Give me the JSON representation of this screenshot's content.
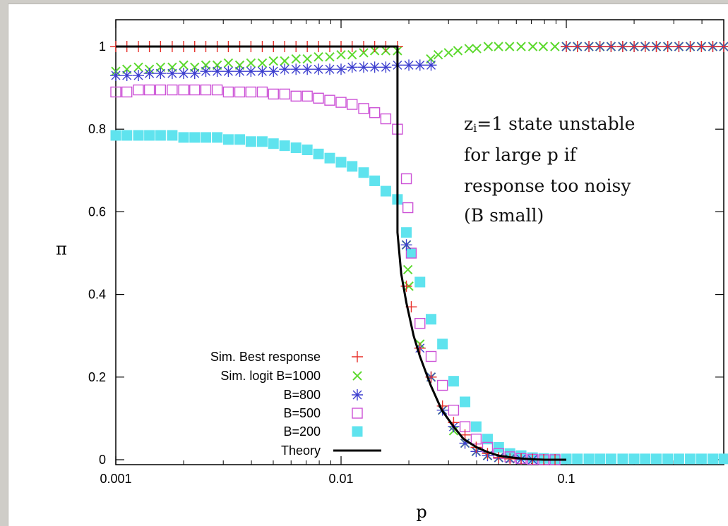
{
  "chart_data": {
    "type": "scatter",
    "title": "",
    "xlabel": "p",
    "ylabel": "π",
    "xscale": "log",
    "xlim": [
      0.001,
      0.5
    ],
    "ylim": [
      0,
      1.05
    ],
    "grid": false,
    "legend_position": "bottom-left",
    "x_ticks": [
      {
        "value": 0.001,
        "label": "0.001"
      },
      {
        "value": 0.01,
        "label": "0.01"
      },
      {
        "value": 0.1,
        "label": "0.1"
      }
    ],
    "y_ticks": [
      {
        "value": 0,
        "label": "0"
      },
      {
        "value": 0.2,
        "label": "0.2"
      },
      {
        "value": 0.4,
        "label": "0.4"
      },
      {
        "value": 0.6,
        "label": "0.6"
      },
      {
        "value": 0.8,
        "label": "0.8"
      },
      {
        "value": 1,
        "label": "1"
      }
    ],
    "annotation": [
      "z",
      "i",
      "=1 state unstable",
      "for large p if",
      "response too noisy",
      "(B small)"
    ],
    "series": [
      {
        "name": "Sim. Best response",
        "marker": "plus",
        "color": "#e8302a",
        "points": [
          [
            0.001,
            1
          ],
          [
            0.00112,
            1
          ],
          [
            0.00126,
            1
          ],
          [
            0.00141,
            1
          ],
          [
            0.00158,
            1
          ],
          [
            0.00178,
            1
          ],
          [
            0.002,
            1
          ],
          [
            0.00224,
            1
          ],
          [
            0.00251,
            1
          ],
          [
            0.00282,
            1
          ],
          [
            0.00316,
            1
          ],
          [
            0.00355,
            1
          ],
          [
            0.00398,
            1
          ],
          [
            0.00447,
            1
          ],
          [
            0.00501,
            1
          ],
          [
            0.00562,
            1
          ],
          [
            0.00631,
            1
          ],
          [
            0.00708,
            1
          ],
          [
            0.00794,
            1
          ],
          [
            0.00891,
            1
          ],
          [
            0.01,
            1
          ],
          [
            0.0112,
            1
          ],
          [
            0.0126,
            1
          ],
          [
            0.0141,
            1
          ],
          [
            0.0158,
            1
          ],
          [
            0.0178,
            1
          ],
          [
            0.0195,
            0.42
          ],
          [
            0.0205,
            0.37
          ],
          [
            0.0224,
            0.27
          ],
          [
            0.0251,
            0.2
          ],
          [
            0.0282,
            0.13
          ],
          [
            0.0316,
            0.09
          ],
          [
            0.0355,
            0.06
          ],
          [
            0.0398,
            0.03
          ],
          [
            0.0447,
            0.015
          ],
          [
            0.0501,
            0.005
          ],
          [
            0.0562,
            0.002
          ],
          [
            0.063,
            0.002
          ],
          [
            0.0708,
            0.001
          ],
          [
            0.0794,
            0
          ],
          [
            0.0891,
            0
          ],
          [
            0.1,
            1
          ],
          [
            0.112,
            1
          ],
          [
            0.126,
            1
          ],
          [
            0.141,
            1
          ],
          [
            0.158,
            1
          ],
          [
            0.178,
            1
          ],
          [
            0.2,
            1
          ],
          [
            0.224,
            1
          ],
          [
            0.251,
            1
          ],
          [
            0.282,
            1
          ],
          [
            0.316,
            1
          ],
          [
            0.355,
            1
          ],
          [
            0.398,
            1
          ],
          [
            0.447,
            1
          ],
          [
            0.5,
            1
          ]
        ]
      },
      {
        "name": "Sim. logit B=1000",
        "marker": "x",
        "color": "#5dd92f",
        "points": [
          [
            0.001,
            0.94
          ],
          [
            0.00112,
            0.945
          ],
          [
            0.00126,
            0.95
          ],
          [
            0.00141,
            0.945
          ],
          [
            0.00158,
            0.95
          ],
          [
            0.00178,
            0.95
          ],
          [
            0.002,
            0.955
          ],
          [
            0.00224,
            0.95
          ],
          [
            0.00251,
            0.955
          ],
          [
            0.00282,
            0.955
          ],
          [
            0.00316,
            0.96
          ],
          [
            0.00355,
            0.955
          ],
          [
            0.00398,
            0.96
          ],
          [
            0.00447,
            0.96
          ],
          [
            0.00501,
            0.965
          ],
          [
            0.00562,
            0.965
          ],
          [
            0.00631,
            0.97
          ],
          [
            0.00708,
            0.97
          ],
          [
            0.00794,
            0.975
          ],
          [
            0.00891,
            0.975
          ],
          [
            0.01,
            0.98
          ],
          [
            0.0112,
            0.98
          ],
          [
            0.0126,
            0.985
          ],
          [
            0.0141,
            0.99
          ],
          [
            0.0158,
            0.99
          ],
          [
            0.0178,
            0.99
          ],
          [
            0.0195,
            0.52
          ],
          [
            0.0198,
            0.46
          ],
          [
            0.02,
            0.42
          ],
          [
            0.0224,
            0.28
          ],
          [
            0.0251,
            0.2
          ],
          [
            0.0282,
            0.12
          ],
          [
            0.0316,
            0.07
          ],
          [
            0.0355,
            0.04
          ],
          [
            0.0398,
            0.02
          ],
          [
            0.0447,
            0.01
          ],
          [
            0.0501,
            0.005
          ],
          [
            0.0562,
            0.002
          ],
          [
            0.025,
            0.97
          ],
          [
            0.027,
            0.98
          ],
          [
            0.03,
            0.985
          ],
          [
            0.033,
            0.99
          ],
          [
            0.037,
            0.995
          ],
          [
            0.04,
            0.995
          ],
          [
            0.045,
            1
          ],
          [
            0.05,
            1
          ],
          [
            0.056,
            1
          ],
          [
            0.063,
            1
          ],
          [
            0.071,
            1
          ],
          [
            0.079,
            1
          ],
          [
            0.089,
            1
          ],
          [
            0.1,
            1
          ],
          [
            0.112,
            1
          ],
          [
            0.126,
            1
          ],
          [
            0.141,
            1
          ],
          [
            0.158,
            1
          ],
          [
            0.178,
            1
          ],
          [
            0.2,
            1
          ],
          [
            0.224,
            1
          ],
          [
            0.251,
            1
          ],
          [
            0.282,
            1
          ],
          [
            0.316,
            1
          ],
          [
            0.355,
            1
          ],
          [
            0.398,
            1
          ],
          [
            0.447,
            1
          ],
          [
            0.5,
            1
          ]
        ]
      },
      {
        "name": "B=800",
        "marker": "star",
        "color": "#3d3fcf",
        "points": [
          [
            0.001,
            0.93
          ],
          [
            0.00112,
            0.93
          ],
          [
            0.00126,
            0.93
          ],
          [
            0.00141,
            0.935
          ],
          [
            0.00158,
            0.935
          ],
          [
            0.00178,
            0.935
          ],
          [
            0.002,
            0.935
          ],
          [
            0.00224,
            0.935
          ],
          [
            0.00251,
            0.94
          ],
          [
            0.00282,
            0.94
          ],
          [
            0.00316,
            0.94
          ],
          [
            0.00355,
            0.94
          ],
          [
            0.00398,
            0.94
          ],
          [
            0.00447,
            0.94
          ],
          [
            0.00501,
            0.94
          ],
          [
            0.00562,
            0.945
          ],
          [
            0.00631,
            0.945
          ],
          [
            0.00708,
            0.945
          ],
          [
            0.00794,
            0.945
          ],
          [
            0.00891,
            0.945
          ],
          [
            0.01,
            0.945
          ],
          [
            0.0112,
            0.95
          ],
          [
            0.0126,
            0.95
          ],
          [
            0.0141,
            0.95
          ],
          [
            0.0158,
            0.95
          ],
          [
            0.0178,
            0.955
          ],
          [
            0.02,
            0.955
          ],
          [
            0.0224,
            0.955
          ],
          [
            0.0251,
            0.955
          ],
          [
            0.0195,
            0.52
          ],
          [
            0.0224,
            0.27
          ],
          [
            0.0251,
            0.2
          ],
          [
            0.0282,
            0.12
          ],
          [
            0.0316,
            0.08
          ],
          [
            0.0355,
            0.04
          ],
          [
            0.0398,
            0.02
          ],
          [
            0.0447,
            0.01
          ],
          [
            0.0501,
            0.005
          ],
          [
            0.0562,
            0.002
          ],
          [
            0.063,
            0.001
          ],
          [
            0.0708,
            0
          ],
          [
            0.1,
            1
          ],
          [
            0.112,
            1
          ],
          [
            0.126,
            1
          ],
          [
            0.141,
            1
          ],
          [
            0.158,
            1
          ],
          [
            0.178,
            1
          ],
          [
            0.2,
            1
          ],
          [
            0.224,
            1
          ],
          [
            0.251,
            1
          ],
          [
            0.282,
            1
          ],
          [
            0.316,
            1
          ],
          [
            0.355,
            1
          ],
          [
            0.398,
            1
          ],
          [
            0.447,
            1
          ],
          [
            0.5,
            1
          ]
        ]
      },
      {
        "name": "B=500",
        "marker": "square-open",
        "color": "#cc52d6",
        "points": [
          [
            0.001,
            0.89
          ],
          [
            0.00112,
            0.89
          ],
          [
            0.00126,
            0.895
          ],
          [
            0.00141,
            0.895
          ],
          [
            0.00158,
            0.895
          ],
          [
            0.00178,
            0.895
          ],
          [
            0.002,
            0.895
          ],
          [
            0.00224,
            0.895
          ],
          [
            0.00251,
            0.895
          ],
          [
            0.00282,
            0.895
          ],
          [
            0.00316,
            0.89
          ],
          [
            0.00355,
            0.89
          ],
          [
            0.00398,
            0.89
          ],
          [
            0.00447,
            0.89
          ],
          [
            0.00501,
            0.885
          ],
          [
            0.00562,
            0.885
          ],
          [
            0.00631,
            0.88
          ],
          [
            0.00708,
            0.88
          ],
          [
            0.00794,
            0.875
          ],
          [
            0.00891,
            0.87
          ],
          [
            0.01,
            0.865
          ],
          [
            0.0112,
            0.86
          ],
          [
            0.0126,
            0.85
          ],
          [
            0.0141,
            0.84
          ],
          [
            0.0158,
            0.825
          ],
          [
            0.0178,
            0.8
          ],
          [
            0.0195,
            0.68
          ],
          [
            0.0198,
            0.61
          ],
          [
            0.0205,
            0.5
          ],
          [
            0.0224,
            0.33
          ],
          [
            0.0251,
            0.25
          ],
          [
            0.0282,
            0.18
          ],
          [
            0.0316,
            0.12
          ],
          [
            0.0355,
            0.08
          ],
          [
            0.0398,
            0.05
          ],
          [
            0.0447,
            0.03
          ],
          [
            0.0501,
            0.015
          ],
          [
            0.0562,
            0.007
          ],
          [
            0.063,
            0.003
          ],
          [
            0.0708,
            0.001
          ],
          [
            0.0794,
            0
          ],
          [
            0.0891,
            0
          ]
        ]
      },
      {
        "name": "B=200",
        "marker": "square-filled",
        "color": "#5fe3ee",
        "points": [
          [
            0.001,
            0.785
          ],
          [
            0.00112,
            0.785
          ],
          [
            0.00126,
            0.785
          ],
          [
            0.00141,
            0.785
          ],
          [
            0.00158,
            0.785
          ],
          [
            0.00178,
            0.785
          ],
          [
            0.002,
            0.78
          ],
          [
            0.00224,
            0.78
          ],
          [
            0.00251,
            0.78
          ],
          [
            0.00282,
            0.78
          ],
          [
            0.00316,
            0.775
          ],
          [
            0.00355,
            0.775
          ],
          [
            0.00398,
            0.77
          ],
          [
            0.00447,
            0.77
          ],
          [
            0.00501,
            0.765
          ],
          [
            0.00562,
            0.76
          ],
          [
            0.00631,
            0.755
          ],
          [
            0.00708,
            0.75
          ],
          [
            0.00794,
            0.74
          ],
          [
            0.00891,
            0.73
          ],
          [
            0.01,
            0.72
          ],
          [
            0.0112,
            0.71
          ],
          [
            0.0126,
            0.695
          ],
          [
            0.0141,
            0.675
          ],
          [
            0.0158,
            0.65
          ],
          [
            0.0178,
            0.63
          ],
          [
            0.0195,
            0.55
          ],
          [
            0.0205,
            0.5
          ],
          [
            0.0224,
            0.43
          ],
          [
            0.0251,
            0.34
          ],
          [
            0.0282,
            0.28
          ],
          [
            0.0316,
            0.19
          ],
          [
            0.0355,
            0.14
          ],
          [
            0.0398,
            0.08
          ],
          [
            0.0447,
            0.05
          ],
          [
            0.0501,
            0.03
          ],
          [
            0.0562,
            0.015
          ],
          [
            0.063,
            0.01
          ],
          [
            0.0708,
            0.005
          ],
          [
            0.0794,
            0.003
          ],
          [
            0.0891,
            0.002
          ],
          [
            0.1,
            0.002
          ],
          [
            0.112,
            0.002
          ],
          [
            0.126,
            0.002
          ],
          [
            0.141,
            0.002
          ],
          [
            0.158,
            0.002
          ],
          [
            0.178,
            0.002
          ],
          [
            0.2,
            0.002
          ],
          [
            0.224,
            0.002
          ],
          [
            0.251,
            0.002
          ],
          [
            0.282,
            0.002
          ],
          [
            0.316,
            0.002
          ],
          [
            0.355,
            0.002
          ],
          [
            0.398,
            0.002
          ],
          [
            0.447,
            0.002
          ],
          [
            0.5,
            0.002
          ]
        ]
      },
      {
        "name": "Theory",
        "marker": "line",
        "color": "#000000",
        "points": [
          [
            0.001,
            1
          ],
          [
            0.0178,
            1
          ],
          [
            0.0178,
            0.55
          ],
          [
            0.0185,
            0.45
          ],
          [
            0.0195,
            0.38
          ],
          [
            0.021,
            0.3
          ],
          [
            0.0224,
            0.25
          ],
          [
            0.025,
            0.18
          ],
          [
            0.028,
            0.12
          ],
          [
            0.0316,
            0.08
          ],
          [
            0.035,
            0.05
          ],
          [
            0.04,
            0.03
          ],
          [
            0.045,
            0.018
          ],
          [
            0.05,
            0.01
          ],
          [
            0.056,
            0.006
          ],
          [
            0.063,
            0.003
          ],
          [
            0.071,
            0.001
          ],
          [
            0.08,
            0
          ],
          [
            0.1,
            0
          ]
        ]
      }
    ]
  }
}
